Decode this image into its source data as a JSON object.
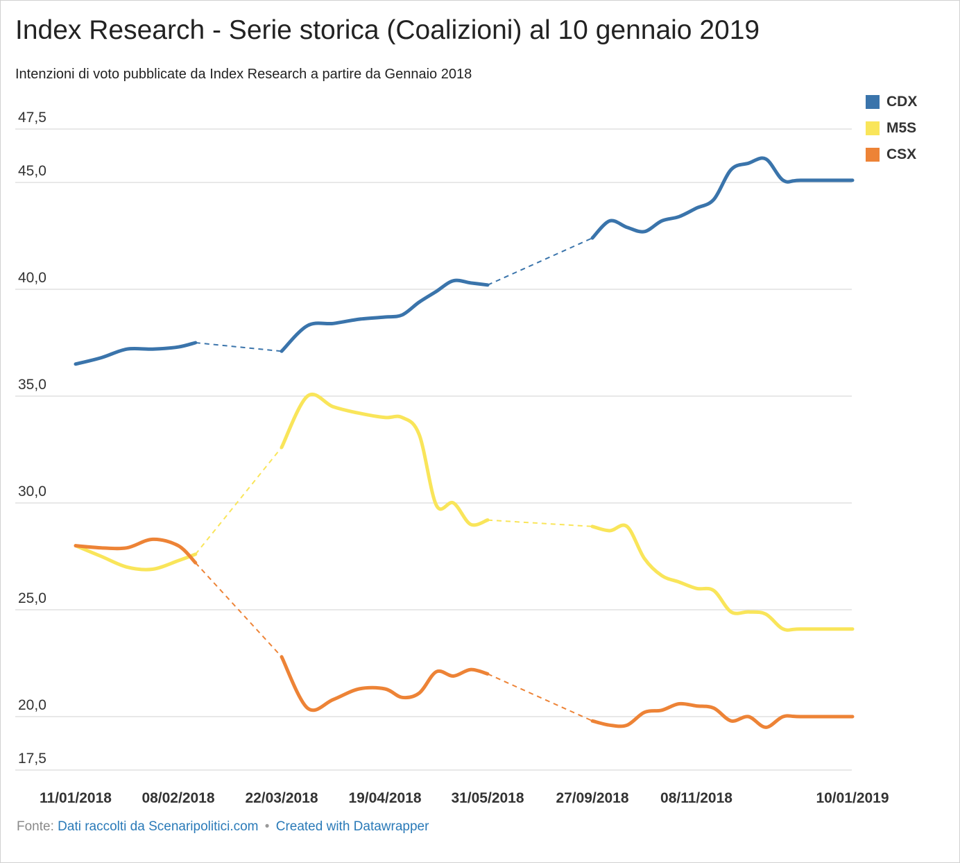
{
  "title": "Index Research - Serie storica (Coalizioni) al 10 gennaio 2019",
  "subtitle": "Intenzioni di voto pubblicate da Index Research a partire da Gennaio 2018",
  "footer": {
    "source_prefix": "Fonte:",
    "source_link": "Dati raccolti da Scenaripolitici.com",
    "separator": "•",
    "credit": "Created with Datawrapper"
  },
  "chart_data": {
    "type": "line",
    "title": "Index Research - Serie storica (Coalizioni) al 10 gennaio 2019",
    "xlabel": "",
    "ylabel": "",
    "ylim": [
      17.5,
      47.5
    ],
    "y_ticks": [
      "47,5",
      "45,0",
      "40,0",
      "35,0",
      "30,0",
      "25,0",
      "20,0",
      "17,5"
    ],
    "y_tick_values": [
      47.5,
      45.0,
      40.0,
      35.0,
      30.0,
      25.0,
      20.0,
      17.5
    ],
    "grid": true,
    "legend_position": "top-right",
    "x_tick_labels": [
      "11/01/2018",
      "08/02/2018",
      "22/03/2018",
      "19/04/2018",
      "31/05/2018",
      "27/09/2018",
      "08/11/2018",
      "10/01/2019"
    ],
    "x_tick_dates": [
      "2018-01-11",
      "2018-02-08",
      "2018-03-22",
      "2018-04-19",
      "2018-05-31",
      "2018-09-27",
      "2018-11-08",
      "2019-01-10"
    ],
    "x": [
      "2018-01-11",
      "2018-01-18",
      "2018-01-25",
      "2018-02-01",
      "2018-02-08",
      "2018-02-15",
      "2018-03-22",
      "2018-03-29",
      "2018-04-05",
      "2018-04-12",
      "2018-04-19",
      "2018-04-26",
      "2018-05-03",
      "2018-05-10",
      "2018-05-17",
      "2018-05-24",
      "2018-05-31",
      "2018-09-27",
      "2018-10-04",
      "2018-10-11",
      "2018-10-18",
      "2018-10-25",
      "2018-11-01",
      "2018-11-08",
      "2018-11-15",
      "2018-11-22",
      "2018-11-29",
      "2018-12-06",
      "2018-12-13",
      "2018-12-20",
      "2019-01-10"
    ],
    "gaps": [
      [
        5,
        6
      ],
      [
        16,
        17
      ]
    ],
    "series": [
      {
        "name": "CDX",
        "color": "#3a74ab",
        "values": [
          36.5,
          36.8,
          37.2,
          37.2,
          37.3,
          37.5,
          37.1,
          38.3,
          38.4,
          38.6,
          38.7,
          38.8,
          39.4,
          39.9,
          40.4,
          40.3,
          40.2,
          42.4,
          43.2,
          42.9,
          42.7,
          43.2,
          43.4,
          43.8,
          44.2,
          45.6,
          45.9,
          46.1,
          45.1,
          45.1,
          45.1
        ],
        "values_note": ""
      },
      {
        "name": "M5S",
        "color": "#f9e55a",
        "values": [
          28.0,
          27.5,
          27.0,
          26.9,
          27.3,
          27.6,
          32.6,
          35.0,
          34.5,
          34.2,
          34.0,
          34.0,
          33.2,
          29.9,
          30.0,
          29.0,
          29.2,
          28.9,
          28.7,
          28.9,
          27.4,
          26.6,
          26.3,
          26.0,
          25.9,
          24.9,
          24.9,
          24.8,
          24.1,
          24.1,
          24.1
        ],
        "values_note": ""
      },
      {
        "name": "CSX",
        "color": "#ed8336",
        "values": [
          28.0,
          27.9,
          27.9,
          28.3,
          28.0,
          27.2,
          22.8,
          20.4,
          20.8,
          21.3,
          21.3,
          20.9,
          21.1,
          22.1,
          21.9,
          22.2,
          22.0,
          19.8,
          19.6,
          19.6,
          20.2,
          20.3,
          20.6,
          20.5,
          20.4,
          19.8,
          20.0,
          19.5,
          20.0,
          20.0,
          20.0
        ],
        "values_note": ""
      }
    ]
  }
}
